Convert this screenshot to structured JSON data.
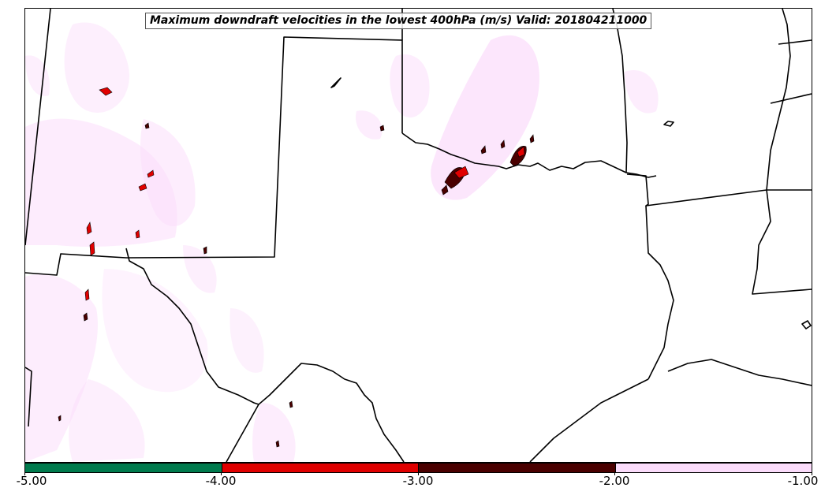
{
  "title": "Maximum downdraft velocities in the lowest 400hPa (m/s) Valid: 201804211000",
  "colorbar": {
    "bins": [
      {
        "from": -5.0,
        "to": -4.0,
        "color": "#007a4d"
      },
      {
        "from": -4.0,
        "to": -3.0,
        "color": "#e00000"
      },
      {
        "from": -3.0,
        "to": -2.0,
        "color": "#4a0000"
      },
      {
        "from": -2.0,
        "to": -1.0,
        "color": "#fbdcfb"
      }
    ],
    "tick_labels": [
      "-5.00",
      "-4.00",
      "-3.00",
      "-2.00",
      "-1.00"
    ]
  },
  "map": {
    "boundary_color": "#000000",
    "shading_colors": {
      "light": "#fbdcfb",
      "medium": "#e00000",
      "strong": "#4a0000"
    }
  }
}
